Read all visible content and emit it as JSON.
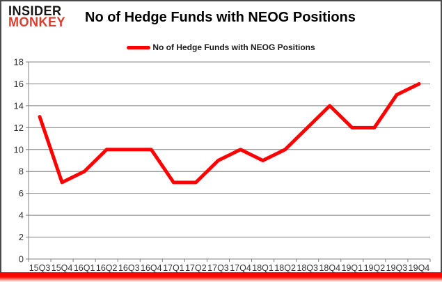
{
  "header": {
    "logo": {
      "line1": "INSIDER",
      "line2": "MONKEY"
    },
    "title": "No of Hedge Funds with NEOG Positions"
  },
  "legend": {
    "label": "No of Hedge Funds with NEOG Positions",
    "swatch": "red-line"
  },
  "colors": {
    "series": "#ff0000",
    "grid": "#808080",
    "axis_text": "#333333",
    "logo_black": "#161413",
    "logo_red": "#d6402e",
    "frame_border": "#4a4a4a",
    "underline": "#ff0000"
  },
  "chart_data": {
    "type": "line",
    "title": "No of Hedge Funds with NEOG Positions",
    "categories": [
      "15Q3",
      "15Q4",
      "16Q1",
      "16Q2",
      "16Q3",
      "16Q4",
      "17Q1",
      "17Q2",
      "17Q3",
      "17Q4",
      "18Q1",
      "18Q2",
      "18Q3",
      "18Q4",
      "19Q1",
      "19Q2",
      "19Q3",
      "19Q4"
    ],
    "series": [
      {
        "name": "No of Hedge Funds with NEOG Positions",
        "color": "#ff0000",
        "values": [
          13,
          7,
          8,
          10,
          10,
          10,
          7,
          7,
          9,
          10,
          9,
          10,
          12,
          14,
          12,
          12,
          15,
          16
        ]
      }
    ],
    "xlabel": "",
    "ylabel": "",
    "ylim": [
      0,
      18
    ],
    "ytick_step": 2,
    "grid": true,
    "legend_position": "top-center"
  }
}
